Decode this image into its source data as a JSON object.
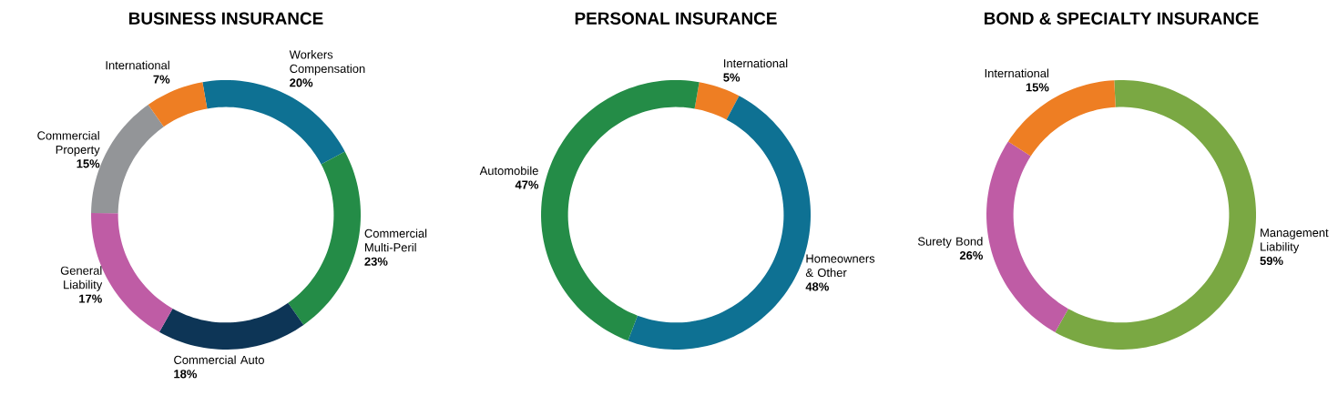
{
  "chart_data": [
    {
      "type": "donut",
      "title": "BUSINESS INSURANCE",
      "categories": [
        "Workers Compensation",
        "Commercial Multi-Peril",
        "Commercial Auto",
        "General Liability",
        "Commercial Property",
        "International"
      ],
      "values": [
        20,
        23,
        18,
        17,
        15,
        7
      ],
      "value_labels": [
        "20%",
        "23%",
        "18%",
        "17%",
        "15%",
        "7%"
      ],
      "colors": [
        "#0e7193",
        "#248c47",
        "#0d3556",
        "#bf5ca5",
        "#939598",
        "#ee7e23"
      ]
    },
    {
      "type": "donut",
      "title": "PERSONAL INSURANCE",
      "categories": [
        "International",
        "Homeowners & Other",
        "Automobile"
      ],
      "values": [
        5,
        48,
        47
      ],
      "value_labels": [
        "5%",
        "48%",
        "47%"
      ],
      "colors": [
        "#ee7e23",
        "#0e7193",
        "#248c47"
      ]
    },
    {
      "type": "donut",
      "title": "BOND & SPECIALTY INSURANCE",
      "categories": [
        "Management Liability",
        "Surety Bond",
        "International"
      ],
      "values": [
        59,
        26,
        15
      ],
      "value_labels": [
        "59%",
        "26%",
        "15%"
      ],
      "colors": [
        "#7aa843",
        "#bf5ca5",
        "#ee7e23"
      ]
    }
  ]
}
